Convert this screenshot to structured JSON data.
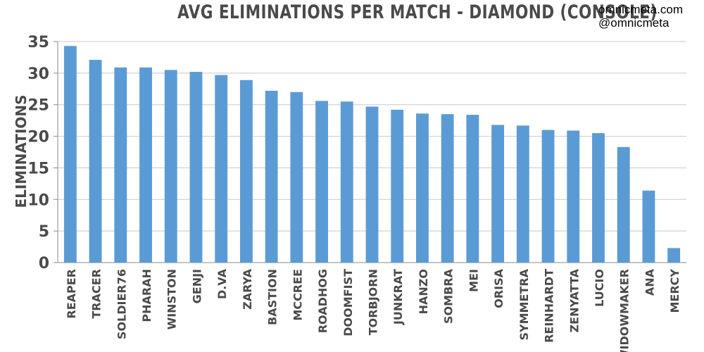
{
  "watermark": {
    "site": "omnicmeta.com",
    "handle": "@omnicmeta"
  },
  "chart_data": {
    "type": "bar",
    "title": "AVG ELIMINATIONS PER MATCH - DIAMOND (CONSOLE)",
    "xlabel": "",
    "ylabel": "ELIMINATIONS",
    "ylim": [
      0,
      35
    ],
    "yticks": [
      0,
      5,
      10,
      15,
      20,
      25,
      30,
      35
    ],
    "grid": true,
    "legend": "none",
    "bar_color": "#5b9bd5",
    "categories": [
      "REAPER",
      "TRACER",
      "SOLDIER76",
      "PHARAH",
      "WINSTON",
      "GENJI",
      "D.VA",
      "ZARYA",
      "BASTION",
      "MCCREE",
      "ROADHOG",
      "DOOMFIST",
      "TORBJORN",
      "JUNKRAT",
      "HANZO",
      "SOMBRA",
      "MEI",
      "ORISA",
      "SYMMETRA",
      "REINHARDT",
      "ZENYATTA",
      "LUCIO",
      "WIDOWMAKER",
      "ANA",
      "MERCY"
    ],
    "values": [
      34.3,
      32.1,
      30.9,
      30.9,
      30.5,
      30.2,
      29.7,
      28.9,
      27.2,
      27.0,
      25.6,
      25.5,
      24.7,
      24.2,
      23.6,
      23.5,
      23.4,
      21.8,
      21.7,
      21.0,
      20.9,
      20.5,
      18.3,
      11.4,
      2.3
    ]
  }
}
